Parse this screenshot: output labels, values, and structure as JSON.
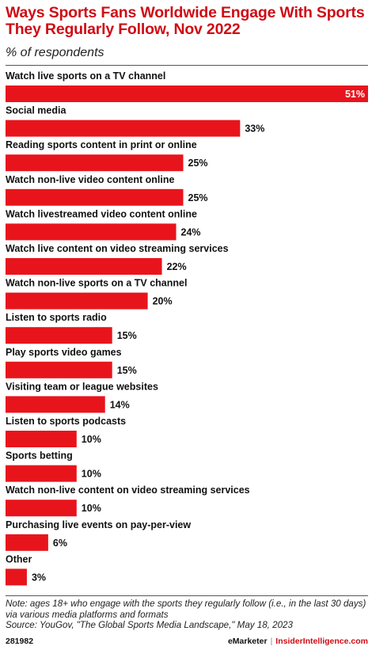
{
  "header": {
    "title": "Ways Sports Fans Worldwide Engage With Sports They Regularly Follow, Nov 2022",
    "subtitle": "% of respondents"
  },
  "colors": {
    "accent": "#cf0c15",
    "bar": "#e8141c",
    "text": "#111111"
  },
  "chart_data": {
    "type": "bar",
    "orientation": "horizontal",
    "categories": [
      "Watch live sports on a TV channel",
      "Social media",
      "Reading sports content in print or online",
      "Watch non-live video content online",
      "Watch livestreamed video content online",
      "Watch live content on video streaming services",
      "Watch non-live sports on a TV channel",
      "Listen to sports radio",
      "Play sports video games",
      "Visiting team or league websites",
      "Listen to sports podcasts",
      "Sports betting",
      "Watch non-live content on video streaming services",
      "Purchasing live events on pay-per-view",
      "Other"
    ],
    "values": [
      51,
      33,
      25,
      25,
      24,
      22,
      20,
      15,
      15,
      14,
      10,
      10,
      10,
      6,
      3
    ],
    "value_suffix": "%",
    "xlim": [
      0,
      51
    ],
    "grid": false,
    "legend": "none"
  },
  "footnote": {
    "note": "Note: ages 18+ who engage with the sports they regularly follow (i.e., in the last 30 days) via various media platforms and formats",
    "source": "Source: YouGov, \"The Global Sports Media Landscape,\" May 18, 2023"
  },
  "footer": {
    "chart_id": "281982",
    "brand_emarketer": "eMarketer",
    "separator": "|",
    "brand_insider": "InsiderIntelligence.com"
  }
}
